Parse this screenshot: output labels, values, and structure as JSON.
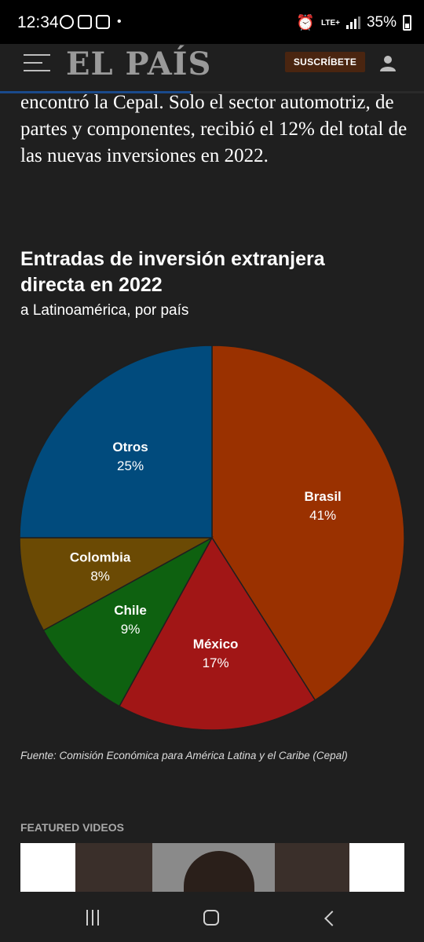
{
  "status_bar": {
    "time": "12:34",
    "network": "LTE+",
    "battery": "35%",
    "app_icons": [
      "whatsapp-icon",
      "mail-icon",
      "linkedin-icon"
    ]
  },
  "header": {
    "logo": "EL PAÍS",
    "subscribe_label": "SUSCRÍBETE",
    "read_progress": 0.45
  },
  "article": {
    "paragraph_tail": "encontró la Cepal. Solo el sector automotriz, de partes y componentes, recibió el 12% del total de las nuevas inversiones en 2022."
  },
  "chart_header": {
    "title": "Entradas de inversión extranjera directa en 2022",
    "subtitle": "a Latinoamérica, por país",
    "source": "Fuente: Comisión Económica para América Latina y el Caribe (Cepal)"
  },
  "chart_data": {
    "type": "pie",
    "unit": "%",
    "start": "12 o'clock, clockwise",
    "slices": [
      {
        "label": "Brasil",
        "value": 41,
        "value_label": "41%",
        "color": "#9a3100"
      },
      {
        "label": "México",
        "value": 17,
        "value_label": "17%",
        "color": "#a11616"
      },
      {
        "label": "Chile",
        "value": 9,
        "value_label": "9%",
        "color": "#0e6110"
      },
      {
        "label": "Colombia",
        "value": 8,
        "value_label": "8%",
        "color": "#6b4a04"
      },
      {
        "label": "Otros",
        "value": 25,
        "value_label": "25%",
        "color": "#014b7d"
      }
    ],
    "slice_border_color": "#1f1f1f"
  },
  "featured": {
    "label": "FEATURED VIDEOS"
  }
}
